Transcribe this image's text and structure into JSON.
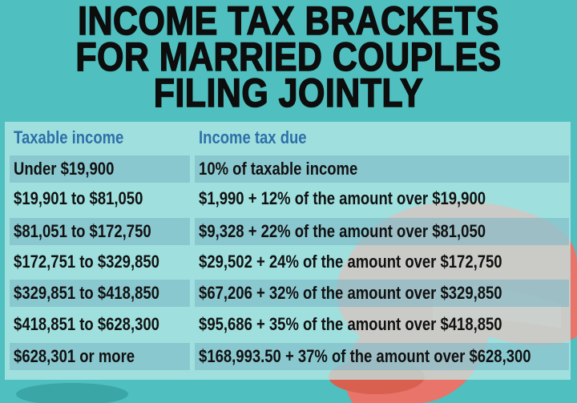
{
  "title": {
    "lines": [
      "INCOME TAX BRACKETS",
      "FOR MARRIED COUPLES",
      "FILING JOINTLY"
    ]
  },
  "table": {
    "headers": [
      "Taxable income",
      "Income tax due"
    ],
    "rows": [
      [
        "Under $19,900",
        "10% of taxable income"
      ],
      [
        "$19,901 to $81,050",
        "$1,990 + 12% of the amount over $19,900"
      ],
      [
        "$81,051 to $172,750",
        "$9,328 + 22% of the amount over $81,050"
      ],
      [
        "$172,751 to $329,850",
        "$29,502 + 24% of the amount over $172,750"
      ],
      [
        "$329,851 to $418,850",
        "$67,206 + 32% of the amount over $329,850"
      ],
      [
        "$418,851 to $628,300",
        "$95,686 + 35% of the amount over $418,850"
      ],
      [
        "$628,301 or more",
        "$168,993.50 + 37% of the amount over $628,300"
      ]
    ]
  },
  "colors": {
    "background": "#4fc0bf",
    "header_text": "#2f6fa8",
    "hands": "#e8746a"
  },
  "decor": {
    "image": "red-hands-illustration"
  }
}
